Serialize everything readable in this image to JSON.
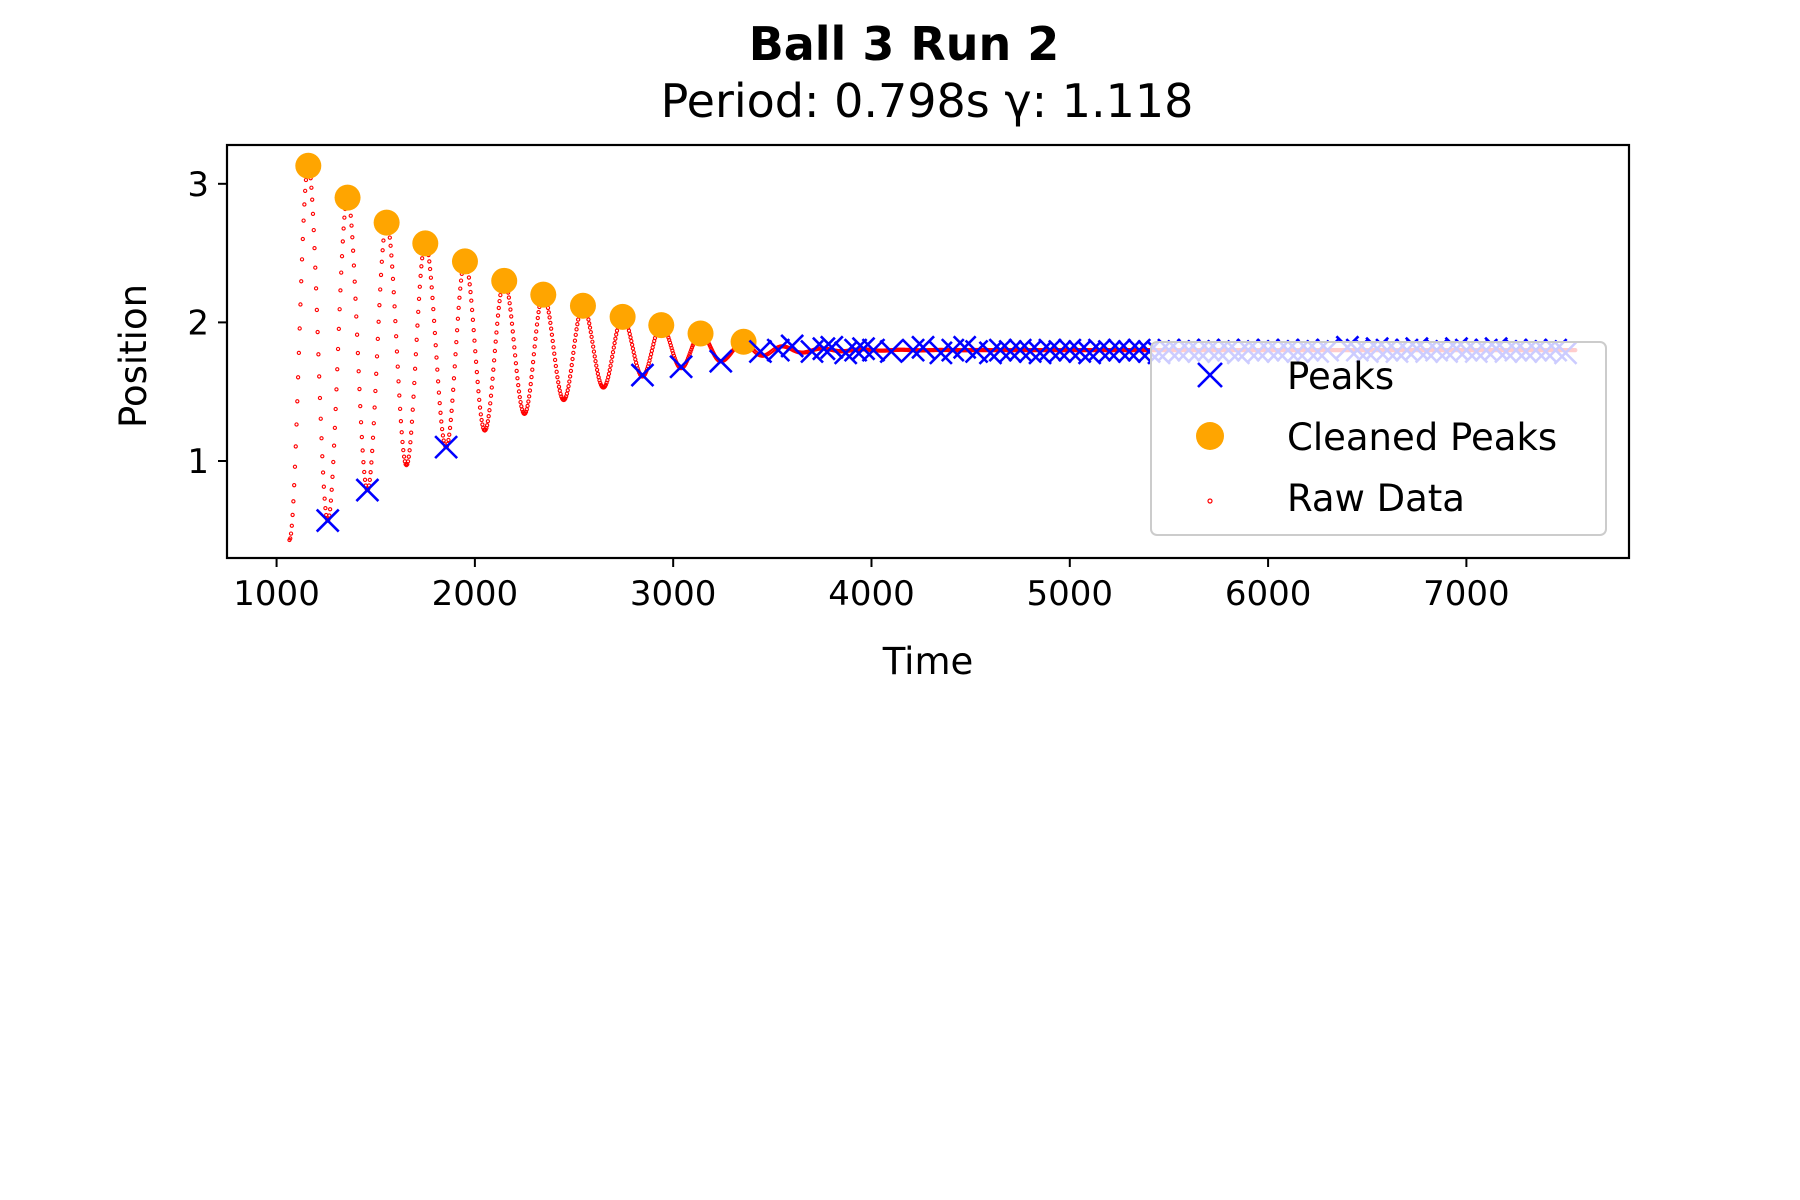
{
  "chart_data": {
    "type": "scatter",
    "title": "Ball 3 Run 2",
    "subtitle": "Period: 0.798s γ: 1.118",
    "xlabel": "Time",
    "ylabel": "Position",
    "xlim": [
      750,
      7820
    ],
    "ylim": [
      0.3,
      3.28
    ],
    "x_ticks": [
      1000,
      2000,
      3000,
      4000,
      5000,
      6000,
      7000
    ],
    "y_ticks": [
      1,
      2,
      3
    ],
    "grid": false,
    "legend": {
      "placement": "right",
      "entries": [
        {
          "label": "Peaks",
          "marker": "x",
          "color": "#0000ff"
        },
        {
          "label": "Cleaned Peaks",
          "marker": "circle",
          "color": "#ffa500"
        },
        {
          "label": "Raw Data",
          "marker": "dot",
          "color": "#ff0000"
        }
      ]
    },
    "raw_data": {
      "name": "Raw Data",
      "color": "#ff0000",
      "x_start": 1065,
      "x_end": 7550,
      "description_peaks": [
        [
          1160,
          3.13
        ],
        [
          1358,
          2.9
        ],
        [
          1555,
          2.72
        ],
        [
          1750,
          2.57
        ],
        [
          1950,
          2.44
        ],
        [
          2148,
          2.3
        ],
        [
          2345,
          2.2
        ],
        [
          2545,
          2.12
        ],
        [
          2745,
          2.04
        ],
        [
          2940,
          1.98
        ],
        [
          3138,
          1.92
        ],
        [
          3355,
          1.86
        ]
      ],
      "description_troughs": [
        [
          1065,
          0.43
        ],
        [
          1258,
          0.57
        ],
        [
          1458,
          0.79
        ],
        [
          1655,
          0.97
        ],
        [
          1855,
          1.1
        ],
        [
          2050,
          1.22
        ],
        [
          2250,
          1.34
        ],
        [
          2448,
          1.44
        ],
        [
          2648,
          1.53
        ],
        [
          2845,
          1.61
        ],
        [
          3040,
          1.67
        ],
        [
          3240,
          1.72
        ]
      ],
      "equilibrium": 1.8
    },
    "series": [
      {
        "name": "Cleaned Peaks",
        "color": "#ffa500",
        "x": [
          1160,
          1358,
          1555,
          1750,
          1950,
          2148,
          2345,
          2545,
          2745,
          2940,
          3138,
          3355
        ],
        "y": [
          3.13,
          2.9,
          2.72,
          2.57,
          2.44,
          2.3,
          2.2,
          2.12,
          2.04,
          1.98,
          1.92,
          1.86
        ]
      },
      {
        "name": "Peaks",
        "color": "#0000ff",
        "x": [
          1258,
          1458,
          1855,
          2845,
          3040,
          3240,
          3440,
          3530,
          3600,
          3700,
          3760,
          3800,
          3870,
          3920,
          3960,
          4010,
          4100,
          4210,
          4260,
          4350,
          4410,
          4470,
          4530,
          4600,
          4650,
          4700,
          4750,
          4800,
          4850,
          4900,
          4950,
          5000,
          5050,
          5100,
          5150,
          5200,
          5250,
          5300,
          5350,
          5400,
          5450,
          5500,
          5550,
          5600,
          5650,
          5700,
          5750,
          5800,
          5850,
          5900,
          5950,
          6000,
          6050,
          6100,
          6150,
          6200,
          6250,
          6300,
          6400,
          6450,
          6500,
          6550,
          6600,
          6650,
          6700,
          6750,
          6800,
          6850,
          6900,
          6950,
          7000,
          7050,
          7100,
          7150,
          7200,
          7250,
          7300,
          7350,
          7400,
          7450,
          7500
        ],
        "y": [
          0.57,
          0.79,
          1.1,
          1.62,
          1.68,
          1.72,
          1.79,
          1.8,
          1.83,
          1.79,
          1.81,
          1.82,
          1.78,
          1.8,
          1.81,
          1.8,
          1.79,
          1.8,
          1.82,
          1.78,
          1.8,
          1.82,
          1.79,
          1.78,
          1.8,
          1.79,
          1.8,
          1.79,
          1.78,
          1.8,
          1.79,
          1.8,
          1.79,
          1.78,
          1.8,
          1.79,
          1.8,
          1.79,
          1.8,
          1.79,
          1.78,
          1.8,
          1.79,
          1.8,
          1.79,
          1.8,
          1.79,
          1.8,
          1.78,
          1.8,
          1.79,
          1.8,
          1.79,
          1.8,
          1.79,
          1.8,
          1.79,
          1.8,
          1.82,
          1.8,
          1.79,
          1.81,
          1.8,
          1.79,
          1.8,
          1.81,
          1.79,
          1.8,
          1.79,
          1.81,
          1.8,
          1.79,
          1.8,
          1.81,
          1.79,
          1.8,
          1.79,
          1.8,
          1.79,
          1.8,
          1.78
        ]
      }
    ]
  }
}
